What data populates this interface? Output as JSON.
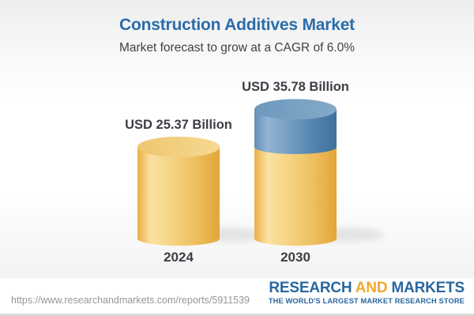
{
  "header": {
    "title": "Construction Additives Market",
    "subtitle": "Market forecast to grow at a CAGR of 6.0%"
  },
  "chart_data": {
    "type": "bar",
    "variant": "3d-cylinder",
    "categories": [
      "2024",
      "2030"
    ],
    "values": [
      25.37,
      35.78
    ],
    "unit": "USD Billion",
    "value_labels": [
      "USD 25.37 Billion",
      "USD 35.78 Billion"
    ],
    "cagr": "6.0%",
    "legend_position": "none",
    "grid": false,
    "colors": {
      "base_bar_gold": "#f0c061",
      "growth_segment_blue": "#5d8fb8",
      "title_blue": "#2a6cab",
      "label_text": "#3b3e44"
    }
  },
  "footer": {
    "url": "https://www.researchandmarkets.com/reports/5911539",
    "logo": {
      "part1": "RESEARCH",
      "part2": "AND",
      "part3": "MARKETS",
      "tagline": "THE WORLD'S LARGEST MARKET RESEARCH STORE",
      "blue": "#29679f",
      "gold": "#efa82f"
    }
  }
}
